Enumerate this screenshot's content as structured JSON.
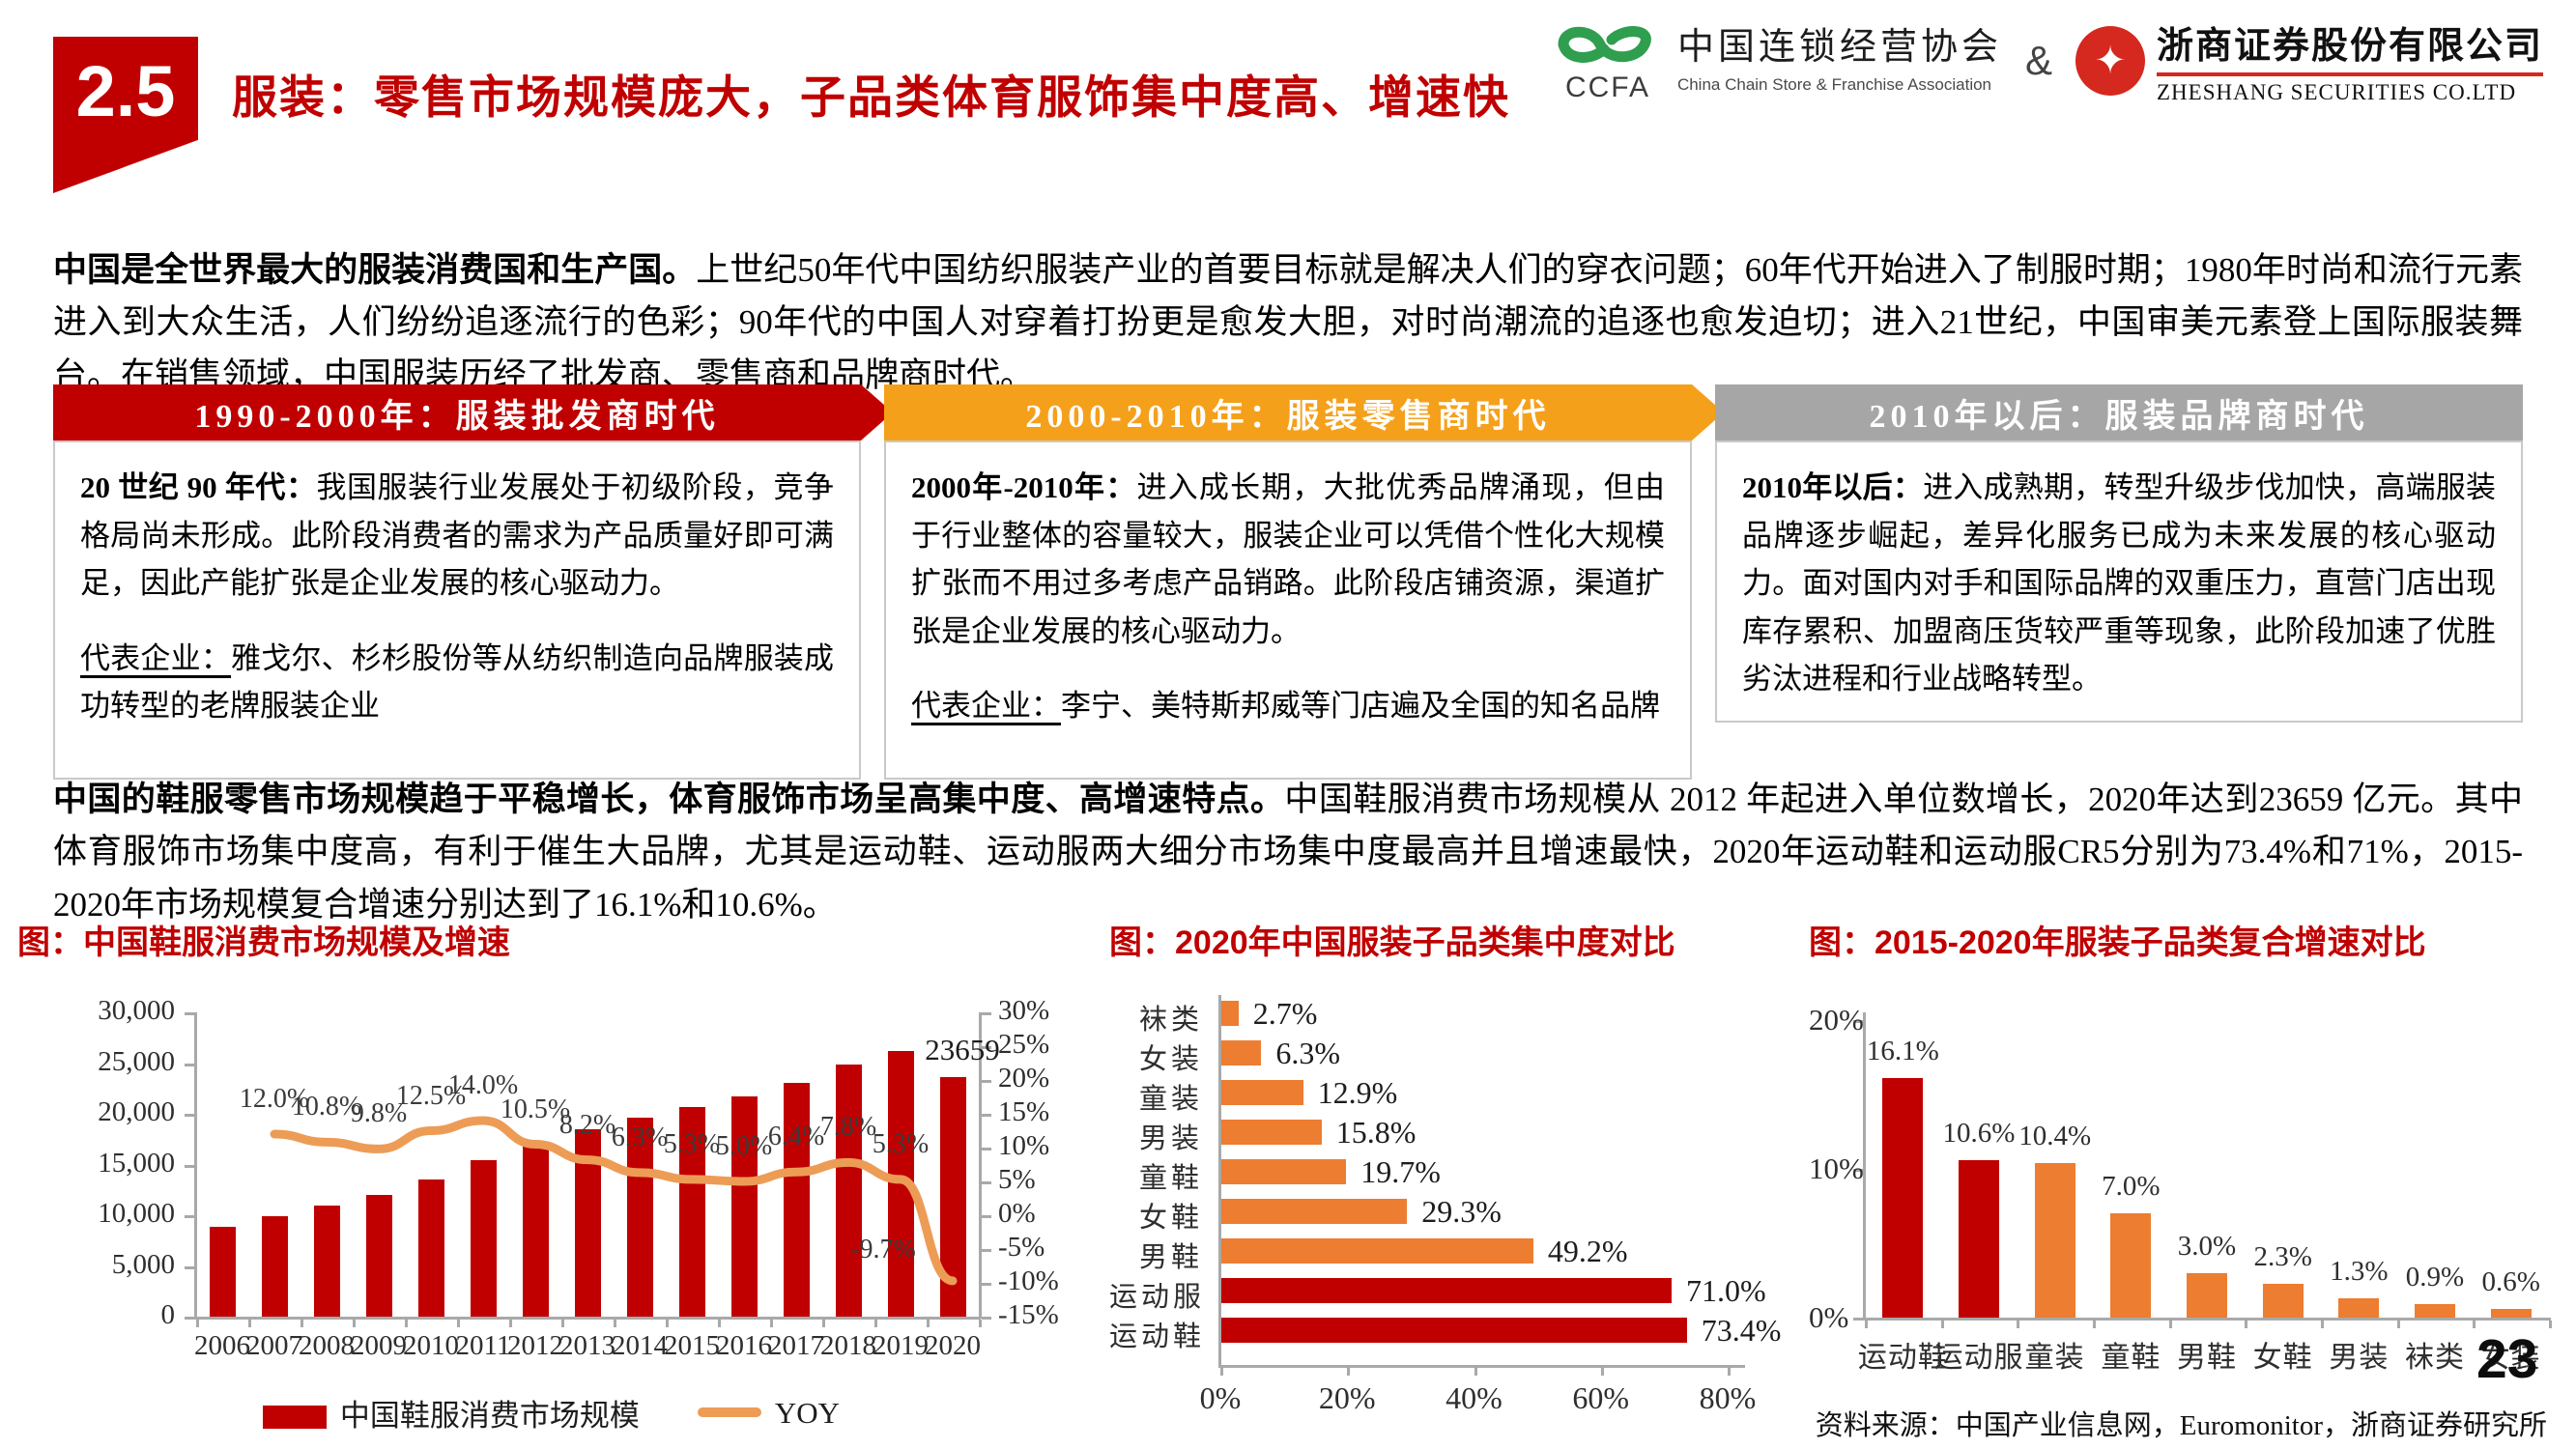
{
  "header": {
    "section_number": "2.5",
    "title": "服装：零售市场规模庞大，子品类体育服饰集中度高、增速快",
    "logos": {
      "ccfa_acronym": "CCFA",
      "ccfa_cn": "中国连锁经营协会",
      "ccfa_en": "China Chain Store & Franchise Association",
      "ampersand": "&",
      "zheshang_cn": "浙商证券股份有限公司",
      "zheshang_en": "ZHESHANG SECURITIES CO.LTD"
    }
  },
  "intro": {
    "bold": "中国是全世界最大的服装消费国和生产国。",
    "text": "上世纪50年代中国纺织服装产业的首要目标就是解决人们的穿衣问题；60年代开始进入了制服时期；1980年时尚和流行元素进入到大众生活，人们纷纷追逐流行的色彩；90年代的中国人对穿着打扮更是愈发大胆，对时尚潮流的追逐也愈发迫切；进入21世纪，中国审美元素登上国际服装舞台。在销售领域，中国服装历经了批发商、零售商和品牌商时代。"
  },
  "eras": [
    {
      "banner": "1990-2000年：服装批发商时代",
      "color": "#C00000",
      "arrow": true,
      "lead": "20 世纪 90 年代：",
      "body": "我国服装行业发展处于初级阶段，竞争格局尚未形成。此阶段消费者的需求为产品质量好即可满足，因此产能扩张是企业发展的核心驱动力。",
      "rep_label": "代表企业：",
      "rep_text": "雅戈尔、杉杉股份等从纺织制造向品牌服装成功转型的老牌服装企业"
    },
    {
      "banner": "2000-2010年：服装零售商时代",
      "color": "#F5A01B",
      "arrow": true,
      "lead": "2000年-2010年：",
      "body": "进入成长期，大批优秀品牌涌现，但由于行业整体的容量较大，服装企业可以凭借个性化大规模扩张而不用过多考虑产品销路。此阶段店铺资源，渠道扩张是企业发展的核心驱动力。",
      "rep_label": "代表企业：",
      "rep_text": "李宁、美特斯邦威等门店遍及全国的知名品牌"
    },
    {
      "banner": "2010年以后：服装品牌商时代",
      "color": "#A6A6A6",
      "arrow": false,
      "lead": "2010年以后：",
      "body": "进入成熟期，转型升级步伐加快，高端服装品牌逐步崛起，差异化服务已成为未来发展的核心驱动力。面对国内对手和国际品牌的双重压力，直营门店出现库存累积、加盟商压货较严重等现象，此阶段加速了优胜劣汰进程和行业战略转型。",
      "rep_label": "",
      "rep_text": ""
    }
  ],
  "para2": {
    "bold": "中国的鞋服零售市场规模趋于平稳增长，体育服饰市场呈高集中度、高增速特点。",
    "text": "中国鞋服消费市场规模从 2012 年起进入单位数增长，2020年达到23659 亿元。其中体育服饰市场集中度高，有利于催生大品牌，尤其是运动鞋、运动服两大细分市场集中度最高并且增速最快，2020年运动鞋和运动服CR5分别为73.4%和71%，2015-2020年市场规模复合增速分别达到了16.1%和10.6%。"
  },
  "chart_data": [
    {
      "type": "bar",
      "title": "图：中国鞋服消费市场规模及增速",
      "categories": [
        "2006",
        "2007",
        "2008",
        "2009",
        "2010",
        "2011",
        "2012",
        "2013",
        "2014",
        "2015",
        "2016",
        "2017",
        "2018",
        "2019",
        "2020"
      ],
      "series": [
        {
          "name": "中国鞋服消费市场规模",
          "type": "bar",
          "color": "#C00000",
          "values": [
            8833,
            9893,
            10961,
            12036,
            13540,
            15436,
            17057,
            18456,
            19619,
            20659,
            21692,
            23080,
            24881,
            26200,
            23659
          ]
        },
        {
          "name": "YOY",
          "type": "line",
          "color": "#ED9C56",
          "values": [
            null,
            12.0,
            10.8,
            9.8,
            12.5,
            14.0,
            10.5,
            8.2,
            6.3,
            5.3,
            5.0,
            6.4,
            7.8,
            5.3,
            -9.7
          ],
          "labels": [
            "",
            "12.0%",
            "10.8%",
            "9.8%",
            "12.5%",
            "14.0%",
            "10.5%",
            "8.2%",
            "6.3%",
            "5.3%",
            "5.0%",
            "6.4%",
            "7.8%",
            "5.3%",
            "-9.7%"
          ]
        }
      ],
      "bar_label": {
        "index": 14,
        "text": "23659"
      },
      "left_axis": {
        "min": 0,
        "max": 30000,
        "ticks": [
          "30,000",
          "25,000",
          "20,000",
          "15,000",
          "10,000",
          "5,000",
          "0"
        ]
      },
      "right_axis": {
        "min": -15,
        "max": 30,
        "ticks": [
          "30%",
          "25%",
          "20%",
          "15%",
          "10%",
          "5%",
          "0%",
          "-5%",
          "-10%",
          "-15%"
        ]
      },
      "legend": [
        "中国鞋服消费市场规模",
        "YOY"
      ],
      "grid": false,
      "legend_position": "bottom"
    },
    {
      "type": "bar",
      "orientation": "horizontal",
      "title": "图：2020年中国服装子品类集中度对比",
      "categories": [
        "袜类",
        "女装",
        "童装",
        "男装",
        "童鞋",
        "女鞋",
        "男鞋",
        "运动服",
        "运动鞋"
      ],
      "values": [
        2.7,
        6.3,
        12.9,
        15.8,
        19.7,
        29.3,
        49.2,
        71.0,
        73.4
      ],
      "labels": [
        "2.7%",
        "6.3%",
        "12.9%",
        "15.8%",
        "19.7%",
        "29.3%",
        "49.2%",
        "71.0%",
        "73.4%"
      ],
      "colors": [
        "#ED7D31",
        "#ED7D31",
        "#ED7D31",
        "#ED7D31",
        "#ED7D31",
        "#ED7D31",
        "#ED7D31",
        "#C00000",
        "#C00000"
      ],
      "x_axis": {
        "min": 0,
        "max": 80,
        "ticks": [
          "0%",
          "20%",
          "40%",
          "60%",
          "80%"
        ]
      },
      "grid": false
    },
    {
      "type": "bar",
      "title": "图：2015-2020年服装子品类复合增速对比",
      "categories": [
        "运动鞋",
        "运动服",
        "童装",
        "童鞋",
        "男鞋",
        "女鞋",
        "男装",
        "袜类",
        "女装"
      ],
      "values": [
        16.1,
        10.6,
        10.4,
        7.0,
        3.0,
        2.3,
        1.3,
        0.9,
        0.6
      ],
      "labels": [
        "16.1%",
        "10.6%",
        "10.4%",
        "7.0%",
        "3.0%",
        "2.3%",
        "1.3%",
        "0.9%",
        "0.6%"
      ],
      "colors": [
        "#C00000",
        "#C00000",
        "#ED7D31",
        "#ED7D31",
        "#ED7D31",
        "#ED7D31",
        "#ED7D31",
        "#ED7D31",
        "#ED7D31"
      ],
      "y_axis": {
        "min": 0,
        "max": 20,
        "ticks": [
          "20%",
          "10%",
          "0%"
        ]
      },
      "grid": false
    }
  ],
  "footer": {
    "source": "资料来源：中国产业信息网，Euromonitor，浙商证券研究所",
    "page": "23"
  }
}
